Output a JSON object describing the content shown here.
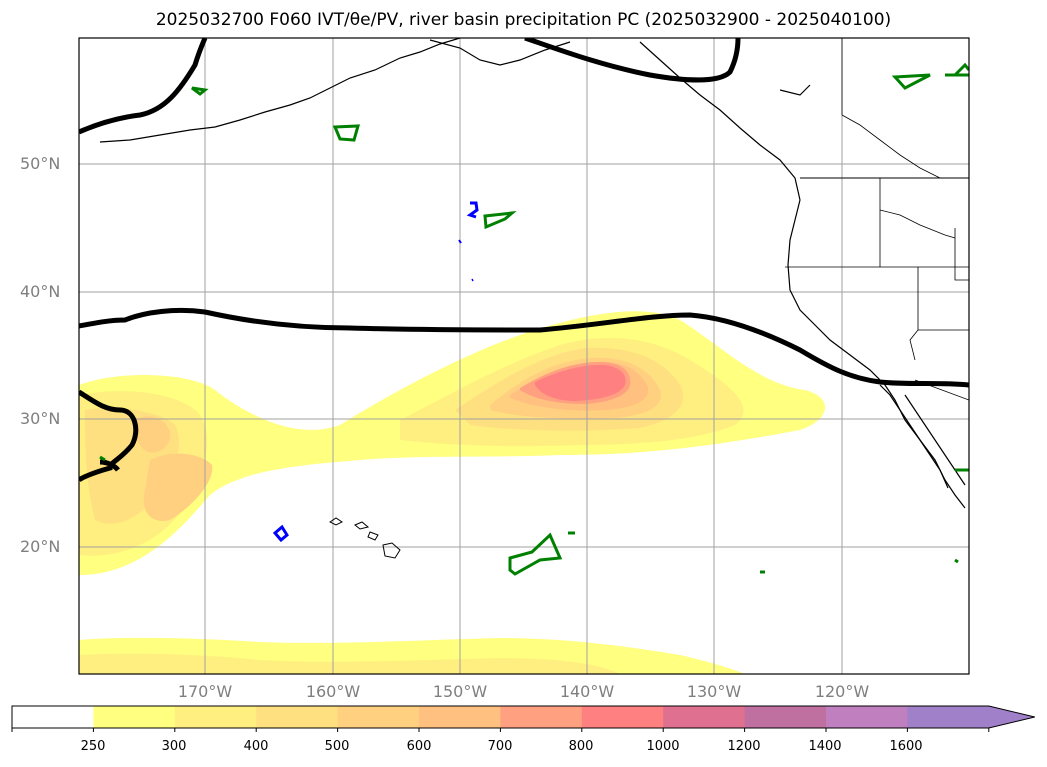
{
  "title": "2025032700 F060 IVT/θe/PV, river basin precipitation PC (2025032900 - 2025040100)",
  "map": {
    "lat_labels": [
      "50°N",
      "40°N",
      "30°N",
      "20°N"
    ],
    "lon_labels": [
      "170°W",
      "160°W",
      "150°W",
      "140°W",
      "130°W",
      "120°W"
    ]
  },
  "colorbar": {
    "levels": [
      "250",
      "300",
      "400",
      "500",
      "600",
      "700",
      "800",
      "1000",
      "1200",
      "1400",
      "1600"
    ],
    "colors": [
      "#ffffff",
      "#ffff80",
      "#ffef80",
      "#ffe080",
      "#ffd080",
      "#ffc080",
      "#ffa080",
      "#ff8080",
      "#e07090",
      "#c070a0",
      "#c080c0",
      "#a080c8"
    ]
  },
  "contour_colors": {
    "black": "#000000",
    "green": "#008000",
    "blue": "#0000ff"
  }
}
